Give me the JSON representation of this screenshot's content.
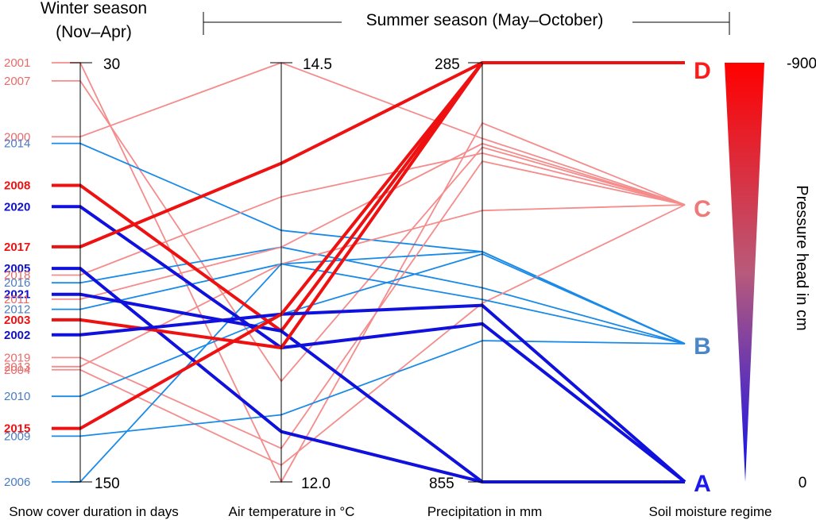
{
  "chart_data": {
    "type": "parallel-coordinates",
    "headers": {
      "winter": [
        "Winter season",
        "(Nov–Apr)"
      ],
      "summer": "Summer season (May–October)"
    },
    "axes": [
      {
        "id": "snow",
        "label": "Snow cover duration in days",
        "top_label": "30",
        "bottom_label": "150"
      },
      {
        "id": "temp",
        "label": "Air temperature in °C",
        "top_label": "14.5",
        "bottom_label": "12.0"
      },
      {
        "id": "precip",
        "label": "Precipitation in mm",
        "top_label": "285",
        "bottom_label": "855"
      },
      {
        "id": "regime",
        "label": "Soil moisture regime"
      }
    ],
    "regimes": [
      {
        "name": "D",
        "color": "#ff1a1a"
      },
      {
        "name": "C",
        "color": "#f07878"
      },
      {
        "name": "B",
        "color": "#4a86c8"
      },
      {
        "name": "A",
        "color": "#1a1aee"
      }
    ],
    "colorbar": {
      "title": "Pressure head in cm",
      "top_label": "-900",
      "bottom_label": "0",
      "top_color": "#ff0000",
      "bottom_color": "#1010ee"
    },
    "styles": {
      "C": {
        "line": "#f58c8c",
        "text": "#e86a6a",
        "width": 1.8,
        "bold": false
      },
      "B": {
        "line": "#1a8ae8",
        "text": "#4a7cc0",
        "width": 1.8,
        "bold": false
      },
      "D": {
        "line": "#ee1111",
        "text": "#ee1111",
        "width": 4,
        "bold": true
      },
      "A": {
        "line": "#1111dd",
        "text": "#1111cc",
        "width": 4,
        "bold": true
      }
    },
    "years": [
      {
        "year": "2001",
        "snow": 30,
        "temp": 12.0,
        "precip": 367,
        "regime": "C"
      },
      {
        "year": "2007",
        "snow": 35.2,
        "temp": 12.6,
        "precip": 400,
        "regime": "C"
      },
      {
        "year": "2000",
        "snow": 51.2,
        "temp": 14.5,
        "precip": 388,
        "regime": "C"
      },
      {
        "year": "2014",
        "snow": 53.1,
        "temp": 13.5,
        "precip": 542,
        "regime": "B"
      },
      {
        "year": "2008",
        "snow": 65.1,
        "temp": 12.9,
        "precip": 285,
        "regime": "D"
      },
      {
        "year": "2020",
        "snow": 71.2,
        "temp": 12.8,
        "precip": 640,
        "regime": "A"
      },
      {
        "year": "2017",
        "snow": 82.7,
        "temp": 13.9,
        "precip": 285,
        "regime": "D"
      },
      {
        "year": "2005",
        "snow": 88.9,
        "temp": 12.3,
        "precip": 855,
        "regime": "A"
      },
      {
        "year": "2018",
        "snow": 90.8,
        "temp": 13.7,
        "precip": 408,
        "regime": "C"
      },
      {
        "year": "2016",
        "snow": 93.0,
        "temp": 13.4,
        "precip": 591,
        "regime": "B"
      },
      {
        "year": "2021",
        "snow": 96.3,
        "temp": 12.9,
        "precip": 855,
        "regime": "A"
      },
      {
        "year": "2011",
        "snow": 97.7,
        "temp": 13.4,
        "precip": 395,
        "regime": "C"
      },
      {
        "year": "2012",
        "snow": 100.6,
        "temp": 13.3,
        "precip": 542,
        "regime": "B"
      },
      {
        "year": "2003",
        "snow": 103.6,
        "temp": 12.8,
        "precip": 285,
        "regime": "D"
      },
      {
        "year": "2002",
        "snow": 107.9,
        "temp": 13.0,
        "precip": 615,
        "regime": "A"
      },
      {
        "year": "2019",
        "snow": 114.4,
        "temp": 12.2,
        "precip": 419,
        "regime": "C"
      },
      {
        "year": "2013",
        "snow": 117.0,
        "temp": 13.3,
        "precip": 486,
        "regime": "C"
      },
      {
        "year": "2004",
        "snow": 117.9,
        "temp": 12.1,
        "precip": 612,
        "regime": "C"
      },
      {
        "year": "2010",
        "snow": 125.5,
        "temp": 13.0,
        "precip": 545,
        "regime": "B"
      },
      {
        "year": "2015",
        "snow": 134.7,
        "temp": 13.0,
        "precip": 285,
        "regime": "D"
      },
      {
        "year": "2009",
        "snow": 136.9,
        "temp": 12.4,
        "precip": 663,
        "regime": "B"
      },
      {
        "year": "2006",
        "snow": 150,
        "temp": 13.3,
        "precip": 607,
        "regime": "B"
      }
    ]
  }
}
